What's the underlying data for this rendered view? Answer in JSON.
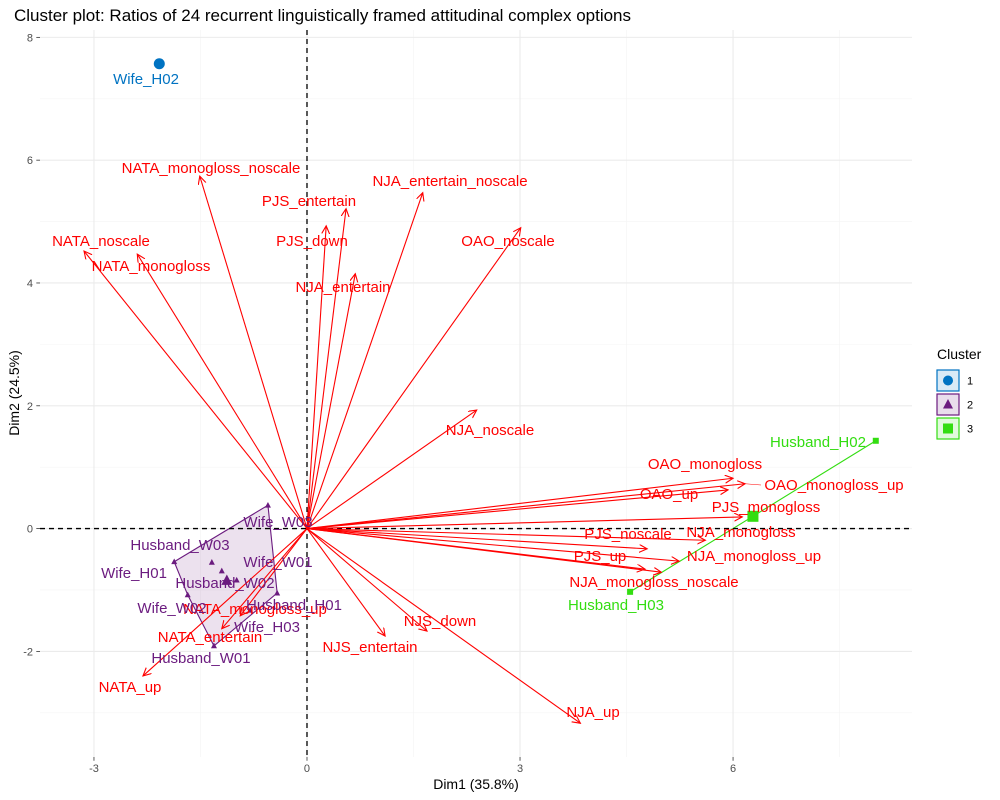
{
  "chart_data": {
    "type": "scatter",
    "title": "Cluster plot: Ratios of 24 recurrent linguistically framed attitudinal complex options",
    "xlabel": "Dim1 (35.8%)",
    "ylabel": "Dim2 (24.5%)",
    "xlim": [
      -3.76,
      8.52
    ],
    "ylim": [
      -3.72,
      8.12
    ],
    "x_ticks": [
      -3,
      0,
      3,
      6
    ],
    "y_ticks": [
      -2,
      0,
      2,
      4,
      6,
      8
    ],
    "grid": true,
    "reference_lines": {
      "x": 0,
      "y": 0,
      "style": "dashed"
    },
    "legend": {
      "title": "Cluster",
      "position": "right"
    },
    "clusters": [
      {
        "name": "1",
        "color": "#0073C2",
        "shape": "circle",
        "points": [
          {
            "label": "Wife_H02",
            "x": -2.08,
            "y": 7.57
          }
        ]
      },
      {
        "name": "2",
        "color": "#6B1B7F",
        "shape": "triangle",
        "points": [
          {
            "label": "Wife_W03",
            "x": -0.55,
            "y": 0.38
          },
          {
            "label": "Husband_W03",
            "x": -1.34,
            "y": -0.55
          },
          {
            "label": "Wife_H01",
            "x": -1.87,
            "y": -0.54
          },
          {
            "label": "Husband_W02",
            "x": -1.2,
            "y": -0.69
          },
          {
            "label": "Wife_W01",
            "x": -0.99,
            "y": -0.84
          },
          {
            "label": "Wife_W02",
            "x": -1.68,
            "y": -1.08
          },
          {
            "label": "Husband_H01",
            "x": -0.42,
            "y": -1.05
          },
          {
            "label": "Wife_H03",
            "x": -0.8,
            "y": -1.33
          },
          {
            "label": "Husband_W01",
            "x": -1.31,
            "y": -1.91
          }
        ]
      },
      {
        "name": "3",
        "color": "#33DD11",
        "shape": "square",
        "points": [
          {
            "label": "Husband_H02",
            "x": 8.01,
            "y": 1.43
          },
          {
            "label": "Husband_H03",
            "x": 4.55,
            "y": -1.03
          }
        ]
      }
    ],
    "variables": {
      "color": "#FF0000",
      "arrows": [
        {
          "label": "NATA_monogloss_noscale",
          "x": -1.51,
          "y": 5.74
        },
        {
          "label": "NATA_noscale",
          "x": -3.14,
          "y": 4.52
        },
        {
          "label": "NATA_monogloss",
          "x": -2.39,
          "y": 4.47
        },
        {
          "label": "PJS_entertain",
          "x": 0.55,
          "y": 5.21
        },
        {
          "label": "PJS_down",
          "x": 0.27,
          "y": 4.93
        },
        {
          "label": "NJA_entertain_noscale",
          "x": 1.63,
          "y": 5.47
        },
        {
          "label": "NJA_entertain",
          "x": 0.68,
          "y": 4.15
        },
        {
          "label": "OAO_noscale",
          "x": 3.01,
          "y": 4.9
        },
        {
          "label": "NJA_noscale",
          "x": 2.39,
          "y": 1.93
        },
        {
          "label": "OAO_monogloss",
          "x": 6.0,
          "y": 0.82
        },
        {
          "label": "OAO_up",
          "x": 5.93,
          "y": 0.63
        },
        {
          "label": "OAO_monogloss_up",
          "x": 6.17,
          "y": 0.73
        },
        {
          "label": "PJS_monogloss",
          "x": 6.13,
          "y": 0.19
        },
        {
          "label": "PJS_noscale",
          "x": 4.79,
          "y": -0.33
        },
        {
          "label": "NJA_monogloss",
          "x": 5.61,
          "y": -0.19
        },
        {
          "label": "PJS_up",
          "x": 4.76,
          "y": -0.66
        },
        {
          "label": "NJA_monogloss_up",
          "x": 5.24,
          "y": -0.53
        },
        {
          "label": "NJA_monogloss_noscale",
          "x": 4.99,
          "y": -0.71
        },
        {
          "label": "NJS_down",
          "x": 1.69,
          "y": -1.67
        },
        {
          "label": "NJS_entertain",
          "x": 1.1,
          "y": -1.75
        },
        {
          "label": "NJA_up",
          "x": 3.85,
          "y": -3.17
        },
        {
          "label": "NATA_up",
          "x": -2.31,
          "y": -2.4
        },
        {
          "label": "NATA_entertain",
          "x": -1.2,
          "y": -1.63
        },
        {
          "label": "NATA_monogloss_up",
          "x": -0.94,
          "y": -1.42
        }
      ]
    }
  }
}
